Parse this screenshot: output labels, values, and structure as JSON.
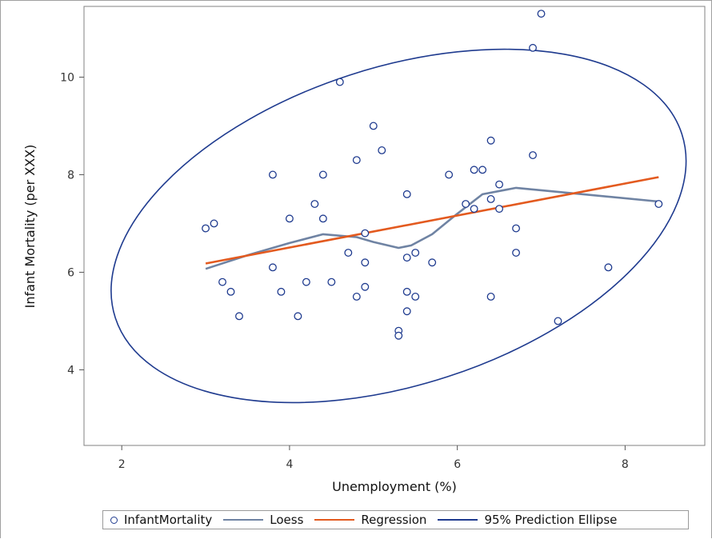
{
  "chart_data": {
    "type": "scatter",
    "title": "",
    "xlabel": "Unemployment (%)",
    "ylabel": "Infant Mortality (per XXX)",
    "xlim": [
      1.55,
      8.95
    ],
    "ylim": [
      2.45,
      11.45
    ],
    "xticks": [
      2,
      4,
      6,
      8
    ],
    "yticks": [
      4,
      6,
      8,
      10
    ],
    "grid": false,
    "legend_position": "bottom",
    "colors": {
      "markers": "#1f3b8f",
      "loess": "#6f83a3",
      "regression": "#e35a1f",
      "ellipse": "#1f3b8f"
    },
    "series": [
      {
        "name": "InfantMortality",
        "kind": "scatter",
        "points": [
          [
            7.0,
            11.3
          ],
          [
            6.9,
            10.6
          ],
          [
            4.6,
            9.9
          ],
          [
            5.0,
            9.0
          ],
          [
            6.4,
            8.7
          ],
          [
            5.1,
            8.5
          ],
          [
            4.8,
            8.3
          ],
          [
            6.9,
            8.4
          ],
          [
            6.2,
            8.1
          ],
          [
            6.3,
            8.1
          ],
          [
            3.8,
            8.0
          ],
          [
            4.4,
            8.0
          ],
          [
            5.9,
            8.0
          ],
          [
            6.5,
            7.8
          ],
          [
            5.4,
            7.6
          ],
          [
            6.4,
            7.5
          ],
          [
            4.3,
            7.4
          ],
          [
            6.1,
            7.4
          ],
          [
            6.2,
            7.3
          ],
          [
            6.5,
            7.3
          ],
          [
            8.4,
            7.4
          ],
          [
            4.0,
            7.1
          ],
          [
            4.4,
            7.1
          ],
          [
            3.1,
            7.0
          ],
          [
            3.0,
            6.9
          ],
          [
            6.7,
            6.9
          ],
          [
            4.9,
            6.8
          ],
          [
            4.7,
            6.4
          ],
          [
            5.5,
            6.4
          ],
          [
            6.7,
            6.4
          ],
          [
            5.4,
            6.3
          ],
          [
            4.9,
            6.2
          ],
          [
            5.7,
            6.2
          ],
          [
            3.8,
            6.1
          ],
          [
            7.8,
            6.1
          ],
          [
            3.2,
            5.8
          ],
          [
            4.2,
            5.8
          ],
          [
            4.5,
            5.8
          ],
          [
            4.9,
            5.7
          ],
          [
            3.3,
            5.6
          ],
          [
            3.9,
            5.6
          ],
          [
            5.4,
            5.6
          ],
          [
            4.8,
            5.5
          ],
          [
            5.5,
            5.5
          ],
          [
            6.4,
            5.5
          ],
          [
            5.4,
            5.2
          ],
          [
            3.4,
            5.1
          ],
          [
            4.1,
            5.1
          ],
          [
            7.2,
            5.0
          ],
          [
            5.3,
            4.8
          ],
          [
            5.3,
            4.7
          ]
        ]
      },
      {
        "name": "Loess",
        "kind": "line",
        "points": [
          [
            3.0,
            6.07
          ],
          [
            3.5,
            6.35
          ],
          [
            4.0,
            6.6
          ],
          [
            4.4,
            6.78
          ],
          [
            4.8,
            6.72
          ],
          [
            5.0,
            6.62
          ],
          [
            5.3,
            6.5
          ],
          [
            5.45,
            6.55
          ],
          [
            5.7,
            6.78
          ],
          [
            6.0,
            7.2
          ],
          [
            6.3,
            7.6
          ],
          [
            6.7,
            7.73
          ],
          [
            7.5,
            7.6
          ],
          [
            8.4,
            7.45
          ]
        ]
      },
      {
        "name": "Regression",
        "kind": "line",
        "points": [
          [
            3.0,
            6.18
          ],
          [
            8.4,
            7.95
          ]
        ]
      },
      {
        "name": "95% Prediction Ellipse",
        "kind": "ellipse",
        "center": [
          5.3,
          6.95
        ],
        "rx": 3.55,
        "ry": 3.25,
        "angle_deg": -18
      }
    ]
  },
  "legend": {
    "items": [
      {
        "label": "InfantMortality",
        "color": "#1f3b8f"
      },
      {
        "label": "Loess",
        "color": "#6f83a3"
      },
      {
        "label": "Regression",
        "color": "#e35a1f"
      },
      {
        "label": "95% Prediction Ellipse",
        "color": "#1f3b8f"
      }
    ]
  }
}
